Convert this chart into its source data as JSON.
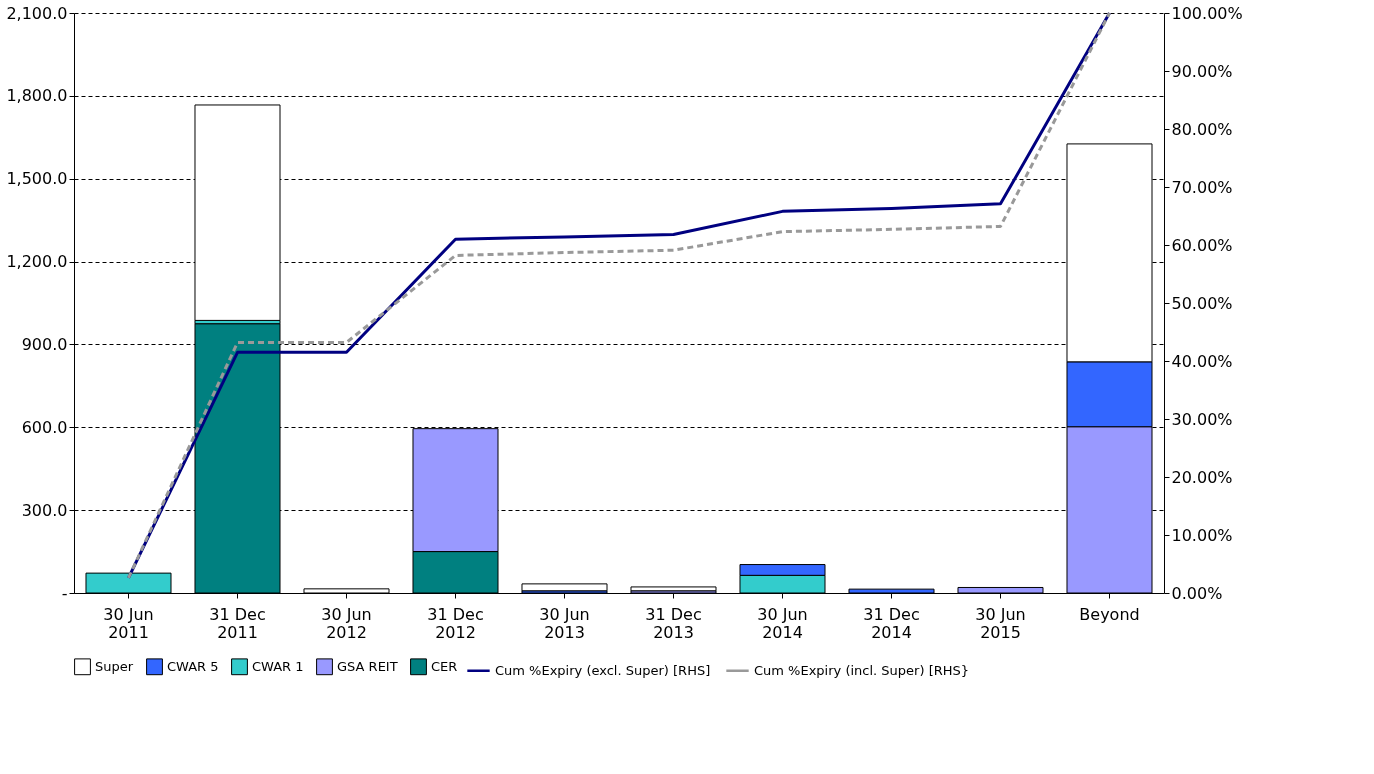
{
  "chart_data": {
    "type": "bar",
    "stacked": true,
    "categories": [
      "30 Jun\n2011",
      "31 Dec\n2011",
      "30 Jun\n2012",
      "31 Dec\n2012",
      "30 Jun\n2013",
      "31 Dec\n2013",
      "30 Jun\n2014",
      "31 Dec\n2014",
      "30 Jun\n2015",
      "Beyond"
    ],
    "series": [
      {
        "name": "CER",
        "color": "#008080",
        "values": [
          0,
          975,
          0,
          150,
          0,
          0,
          0,
          0,
          0,
          0
        ]
      },
      {
        "name": "GSA REIT",
        "color": "#9999ff",
        "values": [
          0,
          0,
          0,
          445,
          0,
          8,
          0,
          0,
          20,
          602
        ]
      },
      {
        "name": "CWAR 1",
        "color": "#33cccc",
        "values": [
          72,
          12,
          0,
          0,
          0,
          0,
          64,
          0,
          0,
          0
        ]
      },
      {
        "name": "CWAR 5",
        "color": "#3366ff",
        "values": [
          0,
          0,
          0,
          0,
          8,
          0,
          39,
          14,
          0,
          235
        ]
      },
      {
        "name": "Super",
        "color": "#ffffff",
        "values": [
          0,
          780,
          15,
          0,
          25,
          14,
          0,
          0,
          0,
          789
        ]
      },
      {
        "name": "Cum %Expiry (excl. Super) [RHS]",
        "type": "line",
        "axis": "y2",
        "line_style": "solid",
        "color": "#000080",
        "values": [
          2.6,
          41.5,
          41.5,
          61.0,
          61.4,
          61.8,
          65.8,
          66.3,
          67.1,
          100
        ]
      },
      {
        "name": "Cum %Expiry (incl. Super) [RHS}",
        "type": "line",
        "axis": "y2",
        "line_style": "dashed",
        "color": "#999999",
        "values": [
          2.6,
          43.2,
          43.2,
          58.2,
          58.7,
          59.1,
          62.3,
          62.7,
          63.2,
          100
        ]
      }
    ],
    "ylim": [
      0,
      2100
    ],
    "yticks": [
      {
        "value": 0,
        "label": "-"
      },
      {
        "value": 300,
        "label": "300.0"
      },
      {
        "value": 600,
        "label": "600.0"
      },
      {
        "value": 900,
        "label": "900.0"
      },
      {
        "value": 1200,
        "label": "1,200.0"
      },
      {
        "value": 1500,
        "label": "1,500.0"
      },
      {
        "value": 1800,
        "label": "1,800.0"
      },
      {
        "value": 2100,
        "label": "2,100.0"
      }
    ],
    "y2lim": [
      0,
      100
    ],
    "y2ticks": [
      {
        "value": 0,
        "label": "0.00%"
      },
      {
        "value": 10,
        "label": "10.00%"
      },
      {
        "value": 20,
        "label": "20.00%"
      },
      {
        "value": 30,
        "label": "30.00%"
      },
      {
        "value": 40,
        "label": "40.00%"
      },
      {
        "value": 50,
        "label": "50.00%"
      },
      {
        "value": 60,
        "label": "60.00%"
      },
      {
        "value": 70,
        "label": "70.00%"
      },
      {
        "value": 80,
        "label": "80.00%"
      },
      {
        "value": 90,
        "label": "90.00%"
      },
      {
        "value": 100,
        "label": "100.00%"
      }
    ],
    "grid": "y",
    "legend": "bottom"
  }
}
